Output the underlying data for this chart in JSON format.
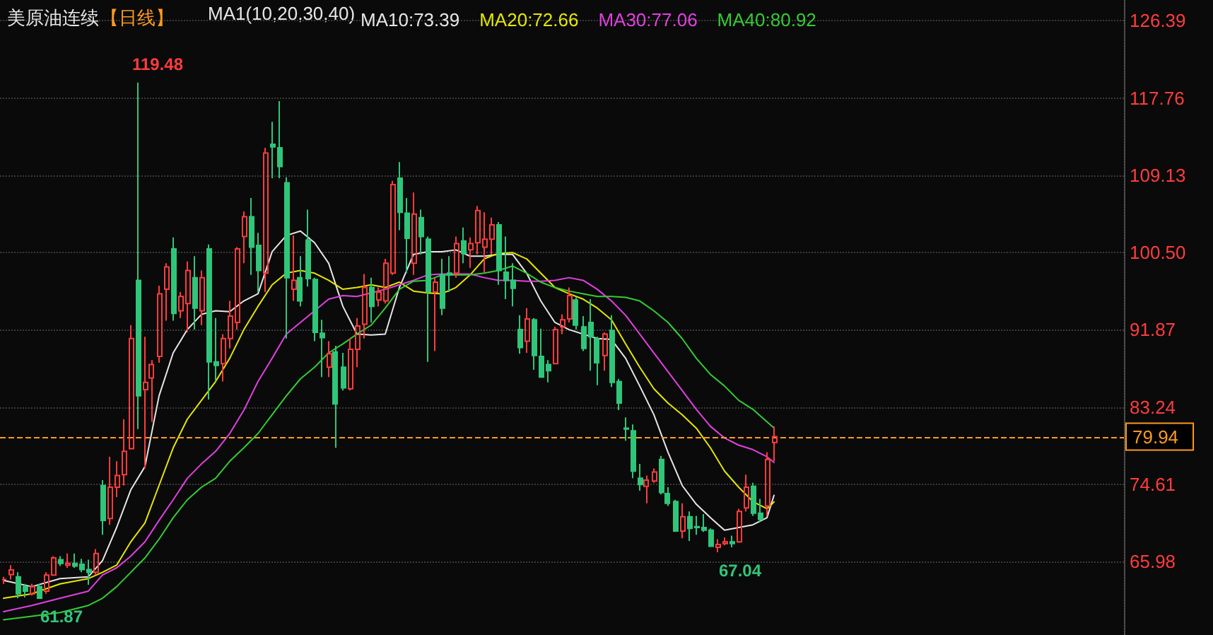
{
  "chart_data": {
    "type": "candlestick",
    "title": "美原油连续",
    "subtitle": "【日线】",
    "annotations": [
      "MA1(10,20,30,40)",
      "119.48",
      "61.87",
      "67.04"
    ],
    "categories": [
      null,
      null,
      null,
      null,
      null,
      null,
      null,
      null,
      null,
      null,
      null,
      null,
      null,
      null,
      null,
      null,
      null,
      null,
      null,
      null,
      null,
      null,
      null,
      null,
      null,
      null,
      null,
      null,
      null,
      null,
      null,
      null,
      null,
      null,
      null,
      null,
      null,
      null,
      null,
      null,
      null,
      null,
      null,
      null,
      null,
      null,
      null,
      null,
      null,
      null,
      null,
      null,
      null,
      null,
      null,
      null,
      null,
      null,
      null,
      null,
      null,
      null,
      null,
      null,
      null,
      null,
      null,
      null,
      null,
      null,
      null,
      null,
      null,
      null,
      null,
      null,
      null,
      null,
      null,
      null,
      null,
      null,
      null,
      null,
      null,
      null,
      null,
      null,
      null,
      null,
      null,
      null,
      null,
      null,
      null,
      null,
      null,
      null,
      null,
      null,
      null,
      null,
      null,
      null,
      null,
      null,
      null,
      null,
      null,
      null,
      null,
      null,
      null,
      null,
      null,
      null,
      null,
      null,
      null,
      null,
      null,
      null,
      null,
      null,
      null,
      null,
      null,
      null,
      null,
      null,
      null,
      null,
      null,
      null,
      null,
      null,
      null,
      null,
      null,
      null,
      null,
      null,
      null,
      null,
      null,
      null,
      null,
      null,
      null,
      null,
      null,
      null,
      null,
      null,
      null,
      null,
      null,
      null,
      null
    ],
    "ohlc": [
      [
        64.0,
        64.3,
        63.5,
        64.0
      ],
      [
        64.55,
        65.6,
        64.0,
        65.07
      ],
      [
        64.3,
        64.8,
        61.9,
        62.4
      ],
      [
        63.2,
        63.5,
        62.0,
        62.7
      ],
      [
        62.4,
        63.5,
        62.2,
        63.2
      ],
      [
        63.2,
        63.5,
        61.87,
        61.9
      ],
      [
        62.7,
        64.8,
        62.4,
        64.5
      ],
      [
        64.5,
        66.6,
        64.5,
        66.4
      ],
      [
        66.2,
        66.6,
        65.5,
        65.8
      ],
      [
        65.6,
        66.9,
        65.3,
        65.8
      ],
      [
        65.8,
        66.9,
        65.3,
        65.5
      ],
      [
        65.7,
        66.3,
        64.8,
        65.1
      ],
      [
        65.1,
        66.2,
        63.4,
        64.8
      ],
      [
        64.8,
        67.4,
        64.5,
        66.9
      ],
      [
        74.5,
        75.1,
        69.0,
        70.6
      ],
      [
        70.8,
        77.7,
        70.1,
        74.3
      ],
      [
        74.3,
        77.2,
        73.2,
        75.6
      ],
      [
        75.7,
        81.9,
        74.5,
        78.3
      ],
      [
        78.6,
        92.4,
        78.5,
        90.9
      ],
      [
        97.4,
        119.48,
        80.8,
        84.5
      ],
      [
        85.2,
        91.1,
        76.4,
        86.0
      ],
      [
        86.5,
        88.5,
        81.6,
        88.0
      ],
      [
        88.9,
        96.8,
        88.2,
        95.9
      ],
      [
        96.4,
        99.3,
        92.9,
        98.9
      ],
      [
        100.9,
        102.2,
        92.9,
        93.7
      ],
      [
        94.0,
        96.1,
        93.2,
        95.6
      ],
      [
        94.8,
        99.5,
        91.6,
        98.5
      ],
      [
        97.7,
        100.1,
        91.9,
        94.3
      ],
      [
        94.0,
        98.5,
        92.4,
        97.7
      ],
      [
        100.9,
        101.4,
        84.1,
        88.3
      ],
      [
        88.3,
        93.2,
        86.1,
        87.9
      ],
      [
        88.1,
        91.4,
        86.1,
        90.9
      ],
      [
        90.9,
        95.1,
        89.8,
        93.4
      ],
      [
        92.7,
        101.1,
        91.9,
        100.9
      ],
      [
        102.3,
        105.1,
        99.3,
        104.5
      ],
      [
        104.5,
        106.6,
        98.0,
        101.1
      ],
      [
        101.3,
        102.7,
        96.1,
        98.5
      ],
      [
        98.2,
        112.2,
        96.1,
        111.6
      ],
      [
        112.6,
        115.1,
        108.8,
        112.3
      ],
      [
        112.2,
        117.4,
        108.8,
        110.1
      ],
      [
        108.3,
        108.9,
        90.9,
        97.7
      ],
      [
        96.4,
        102.4,
        95.1,
        97.4
      ],
      [
        97.7,
        100.1,
        94.5,
        95.1
      ],
      [
        101.9,
        105.3,
        96.7,
        97.6
      ],
      [
        97.5,
        97.7,
        90.6,
        91.6
      ],
      [
        91.5,
        93.0,
        86.6,
        91.0
      ],
      [
        87.7,
        90.6,
        86.6,
        89.2
      ],
      [
        89.4,
        90.1,
        78.7,
        83.6
      ],
      [
        87.7,
        89.3,
        85.1,
        85.4
      ],
      [
        85.3,
        90.9,
        85.1,
        89.7
      ],
      [
        89.7,
        93.2,
        87.7,
        92.3
      ],
      [
        92.5,
        98.1,
        90.9,
        96.6
      ],
      [
        96.6,
        97.7,
        92.7,
        94.5
      ],
      [
        95.2,
        96.6,
        94.5,
        96.1
      ],
      [
        95.1,
        99.8,
        94.8,
        99.3
      ],
      [
        98.2,
        108.5,
        98.0,
        108.1
      ],
      [
        108.8,
        110.6,
        103.0,
        105.0
      ],
      [
        104.9,
        106.6,
        98.2,
        102.1
      ],
      [
        99.3,
        107.2,
        98.0,
        104.8
      ],
      [
        104.4,
        105.3,
        100.3,
        102.3
      ],
      [
        102.0,
        102.3,
        88.3,
        96.1
      ],
      [
        96.1,
        97.7,
        89.5,
        97.2
      ],
      [
        98.0,
        99.8,
        93.5,
        94.3
      ],
      [
        98.2,
        100.1,
        96.1,
        98.0
      ],
      [
        98.2,
        102.3,
        97.7,
        101.5
      ],
      [
        101.8,
        103.3,
        99.3,
        100.4
      ],
      [
        100.8,
        102.2,
        98.8,
        101.5
      ],
      [
        101.6,
        105.7,
        100.3,
        105.2
      ],
      [
        101.1,
        105.0,
        98.2,
        102.0
      ],
      [
        102.0,
        104.4,
        100.3,
        103.6
      ],
      [
        103.6,
        103.9,
        96.9,
        98.5
      ],
      [
        98.3,
        102.3,
        95.3,
        97.4
      ],
      [
        97.4,
        99.3,
        94.5,
        96.5
      ],
      [
        91.9,
        93.5,
        89.2,
        89.9
      ],
      [
        90.6,
        94.3,
        89.3,
        93.1
      ],
      [
        93.0,
        93.2,
        87.4,
        89.0
      ],
      [
        88.9,
        92.0,
        86.6,
        86.6
      ],
      [
        88.0,
        88.5,
        86.0,
        87.3
      ],
      [
        88.1,
        92.2,
        88.1,
        91.9
      ],
      [
        92.2,
        93.6,
        91.4,
        93.0
      ],
      [
        93.1,
        96.6,
        92.7,
        95.7
      ],
      [
        95.2,
        95.5,
        91.9,
        92.4
      ],
      [
        92.2,
        93.4,
        89.5,
        89.8
      ],
      [
        92.7,
        95.3,
        87.3,
        91.1
      ],
      [
        90.9,
        91.1,
        85.7,
        88.2
      ],
      [
        89.0,
        91.6,
        87.3,
        91.4
      ],
      [
        91.8,
        93.5,
        85.5,
        86.0
      ],
      [
        86.1,
        86.4,
        82.9,
        83.7
      ],
      [
        80.9,
        82.1,
        79.5,
        80.8
      ],
      [
        80.6,
        81.3,
        75.3,
        76.1
      ],
      [
        75.3,
        76.9,
        73.9,
        74.6
      ],
      [
        74.4,
        75.6,
        72.5,
        75.1
      ],
      [
        75.0,
        76.4,
        74.8,
        76.0
      ],
      [
        77.4,
        77.8,
        73.5,
        73.7
      ],
      [
        73.6,
        74.3,
        72.2,
        72.5
      ],
      [
        72.7,
        72.9,
        69.3,
        69.4
      ],
      [
        69.4,
        72.5,
        68.6,
        71.0
      ],
      [
        71.0,
        71.6,
        68.3,
        69.7
      ],
      [
        69.9,
        71.1,
        69.0,
        69.8
      ],
      [
        69.8,
        71.3,
        69.3,
        69.5
      ],
      [
        69.5,
        69.7,
        67.7,
        67.7
      ],
      [
        67.6,
        68.5,
        67.04,
        67.9
      ],
      [
        68.0,
        68.7,
        67.8,
        68.2
      ],
      [
        68.2,
        68.9,
        67.6,
        68.0
      ],
      [
        68.2,
        71.9,
        68.1,
        71.6
      ],
      [
        72.0,
        75.7,
        71.6,
        74.3
      ],
      [
        74.4,
        74.8,
        71.1,
        71.4
      ],
      [
        71.4,
        73.0,
        70.4,
        70.7
      ],
      [
        72.2,
        78.2,
        71.1,
        77.4
      ],
      [
        79.3,
        81.1,
        77.2,
        79.94
      ],
      null,
      null,
      null,
      null,
      null,
      null,
      null,
      null,
      null,
      null,
      null,
      null,
      null,
      null,
      null,
      null,
      null,
      null,
      null,
      null,
      null,
      null,
      null,
      null,
      null,
      null,
      null,
      null,
      null,
      null,
      null,
      null,
      null,
      null,
      null,
      null,
      null,
      null,
      null,
      null,
      null,
      null,
      null,
      null,
      null,
      null,
      null,
      null,
      null
    ],
    "series": [
      {
        "name": "MA10:73.39",
        "type": "line",
        "color": "#e6e6e6",
        "values": [
          63.9,
          null,
          null,
          null,
          63.2,
          null,
          null,
          null,
          64.1,
          null,
          null,
          null,
          64.3,
          null,
          66.1,
          null,
          69.8,
          null,
          74.0,
          null,
          76.6,
          null,
          84.5,
          null,
          89.3,
          null,
          91.9,
          null,
          93.6,
          null,
          94.0,
          null,
          93.9,
          null,
          95.1,
          null,
          95.9,
          null,
          100.6,
          null,
          102.4,
          null,
          102.9,
          null,
          101.6,
          null,
          99.3,
          null,
          94.5,
          null,
          91.4,
          null,
          91.3,
          null,
          91.4,
          null,
          96.6,
          null,
          100.3,
          null,
          100.6,
          null,
          100.6,
          null,
          100.8,
          null,
          100.1,
          null,
          100.1,
          null,
          100.3,
          null,
          100.3,
          null,
          98.2,
          null,
          95.1,
          null,
          92.7,
          null,
          91.9,
          null,
          91.4,
          null,
          90.9,
          null,
          90.8,
          null,
          88.7,
          null,
          85.6,
          null,
          82.4,
          null,
          78.2,
          null,
          74.5,
          null,
          72.4,
          null,
          70.9,
          null,
          69.5,
          null,
          69.8,
          null,
          70.1,
          null,
          70.9,
          73.39,
          null,
          null,
          null,
          null,
          null,
          null,
          null,
          null,
          null,
          null,
          null,
          null,
          null,
          null,
          null,
          null,
          null,
          null,
          null,
          null,
          null,
          null,
          null,
          null,
          null,
          null,
          null,
          null,
          null,
          null,
          null,
          null,
          null,
          null,
          null,
          null,
          null,
          null,
          null,
          null,
          null,
          null,
          null,
          null,
          null,
          null,
          null,
          null,
          null
        ]
      },
      {
        "name": "MA20:72.66",
        "type": "line",
        "color": "#e6e600",
        "values": [
          61.9,
          null,
          null,
          null,
          62.4,
          null,
          null,
          null,
          63.5,
          null,
          null,
          null,
          64.1,
          null,
          64.8,
          null,
          65.6,
          null,
          68.2,
          null,
          70.3,
          null,
          74.5,
          null,
          78.7,
          null,
          81.9,
          null,
          84.0,
          null,
          86.1,
          null,
          88.7,
          null,
          91.9,
          null,
          94.5,
          null,
          96.9,
          null,
          98.2,
          null,
          98.5,
          null,
          98.2,
          null,
          97.4,
          null,
          96.4,
          null,
          96.6,
          null,
          96.9,
          null,
          96.6,
          null,
          97.2,
          null,
          96.2,
          null,
          96.0,
          null,
          95.9,
          null,
          96.6,
          null,
          98.0,
          null,
          99.8,
          null,
          100.4,
          null,
          100.5,
          null,
          99.8,
          null,
          98.2,
          null,
          96.6,
          null,
          95.9,
          null,
          95.3,
          null,
          94.3,
          null,
          93.0,
          null,
          90.3,
          null,
          87.7,
          null,
          85.3,
          null,
          83.7,
          null,
          82.4,
          null,
          80.9,
          null,
          78.7,
          null,
          76.1,
          null,
          74.3,
          null,
          72.7,
          null,
          71.9,
          72.66,
          null,
          null,
          null,
          null,
          null,
          null,
          null,
          null,
          null,
          null,
          null,
          null,
          null,
          null,
          null,
          null,
          null,
          null,
          null,
          null,
          null,
          null,
          null,
          null,
          null,
          null,
          null,
          null,
          null,
          null,
          null,
          null,
          null,
          null,
          null,
          null,
          null,
          null,
          null,
          null,
          null,
          null,
          null,
          null,
          null,
          null,
          null,
          null,
          null
        ]
      },
      {
        "name": "MA30:77.06",
        "type": "line",
        "color": "#e040e0",
        "values": [
          60.4,
          null,
          null,
          null,
          61.1,
          null,
          null,
          null,
          61.9,
          null,
          null,
          null,
          62.7,
          null,
          64.5,
          null,
          65.3,
          null,
          66.6,
          null,
          68.2,
          null,
          70.6,
          null,
          72.9,
          null,
          75.3,
          null,
          76.9,
          null,
          78.3,
          null,
          80.3,
          null,
          82.9,
          null,
          86.1,
          null,
          88.7,
          null,
          91.4,
          null,
          92.7,
          null,
          94.0,
          null,
          95.3,
          null,
          95.7,
          null,
          95.6,
          null,
          96.0,
          null,
          96.4,
          null,
          96.9,
          null,
          97.4,
          null,
          98.0,
          null,
          98.1,
          null,
          98.1,
          null,
          98.1,
          null,
          97.7,
          null,
          97.4,
          null,
          97.4,
          null,
          97.3,
          null,
          97.3,
          null,
          97.4,
          null,
          97.7,
          null,
          97.4,
          null,
          96.4,
          null,
          95.1,
          null,
          93.5,
          null,
          91.4,
          null,
          89.3,
          null,
          87.2,
          null,
          85.1,
          null,
          83.0,
          null,
          81.1,
          null,
          79.8,
          null,
          79.0,
          null,
          78.5,
          null,
          77.7,
          77.06,
          null,
          null,
          null,
          null,
          null,
          null,
          null,
          null,
          null,
          null,
          null,
          null,
          null,
          null,
          null,
          null,
          null,
          null,
          null,
          null,
          null,
          null,
          null,
          null,
          null,
          null,
          null,
          null,
          null,
          null,
          null,
          null,
          null,
          null,
          null,
          null,
          null,
          null,
          null,
          null,
          null,
          null,
          null,
          null,
          null,
          null,
          null,
          null,
          null
        ]
      },
      {
        "name": "MA40:80.92",
        "type": "line",
        "color": "#33cc33",
        "values": [
          59.5,
          null,
          null,
          null,
          59.9,
          null,
          null,
          null,
          60.3,
          null,
          null,
          null,
          61.1,
          null,
          61.9,
          null,
          63.2,
          null,
          64.8,
          null,
          66.4,
          null,
          68.5,
          null,
          70.9,
          null,
          72.9,
          null,
          74.3,
          null,
          75.3,
          null,
          77.2,
          null,
          78.7,
          null,
          80.3,
          null,
          82.4,
          null,
          84.5,
          null,
          86.4,
          null,
          87.7,
          null,
          89.3,
          null,
          90.3,
          null,
          91.4,
          null,
          92.4,
          null,
          94.3,
          null,
          96.4,
          null,
          97.3,
          null,
          97.4,
          null,
          98.0,
          null,
          98.0,
          null,
          98.0,
          null,
          98.2,
          null,
          98.5,
          null,
          99.0,
          null,
          98.2,
          null,
          97.2,
          null,
          96.6,
          null,
          96.2,
          null,
          95.9,
          null,
          95.6,
          null,
          95.6,
          null,
          95.5,
          null,
          95.1,
          null,
          94.0,
          null,
          92.7,
          null,
          90.9,
          null,
          88.7,
          null,
          86.9,
          null,
          85.6,
          null,
          84.0,
          null,
          83.0,
          null,
          81.6,
          80.92,
          null,
          null,
          null,
          null,
          null,
          null,
          null,
          null,
          null,
          null,
          null,
          null,
          null,
          null,
          null,
          null,
          null,
          null,
          null,
          null,
          null,
          null,
          null,
          null,
          null,
          null,
          null,
          null,
          null,
          null,
          null,
          null,
          null,
          null,
          null,
          null,
          null,
          null,
          null,
          null,
          null,
          null,
          null,
          null,
          null,
          null,
          null,
          null,
          null
        ]
      }
    ],
    "ylim": [
      57.8,
      128.7
    ],
    "yticks": [
      65.98,
      74.61,
      83.24,
      91.87,
      {
        "value": 100.5,
        "label": "100.50"
      },
      109.13,
      117.76,
      126.39
    ],
    "ref_lines": [
      {
        "axis": "y",
        "value": 79.94,
        "label": "79.94",
        "color": "#ff9a1f",
        "line_style": "dashed"
      }
    ],
    "grid": "y",
    "legend": "top"
  }
}
